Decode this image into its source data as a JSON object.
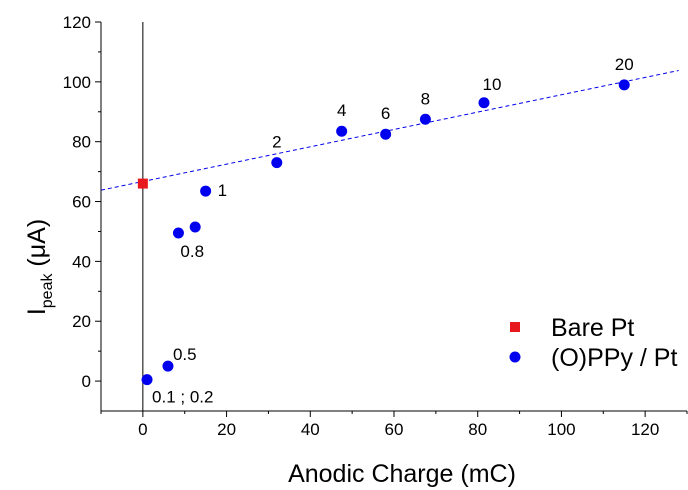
{
  "chart_data": {
    "type": "scatter",
    "xlabel": "Anodic Charge (mC)",
    "ylabel_main": "I",
    "ylabel_sub": "peak",
    "ylabel_unit": " (μA)",
    "xlim": [
      -10,
      130
    ],
    "ylim": [
      -10,
      120
    ],
    "xticks": [
      0,
      20,
      40,
      60,
      80,
      100,
      120
    ],
    "yticks": [
      0,
      20,
      40,
      60,
      80,
      100,
      120
    ],
    "grid": false,
    "legend_position": "bottom-right",
    "series": [
      {
        "name": "Bare Pt",
        "marker": "square",
        "color": "#e8191c",
        "points": [
          {
            "x": 0,
            "y": 66,
            "label": ""
          }
        ]
      },
      {
        "name": "(O)PPy / Pt",
        "marker": "circle",
        "color": "#0000ee",
        "points": [
          {
            "x": 1,
            "y": 0.5,
            "label": "0.1 ; 0.2"
          },
          {
            "x": 6,
            "y": 5,
            "label": "0.5"
          },
          {
            "x": 8.5,
            "y": 49.5,
            "label": "0.8"
          },
          {
            "x": 12.5,
            "y": 51.5,
            "label": ""
          },
          {
            "x": 15,
            "y": 63.5,
            "label": "1"
          },
          {
            "x": 32,
            "y": 73,
            "label": "2"
          },
          {
            "x": 47.5,
            "y": 83.5,
            "label": "4"
          },
          {
            "x": 58,
            "y": 82.5,
            "label": "6"
          },
          {
            "x": 67.5,
            "y": 87.5,
            "label": "8"
          },
          {
            "x": 81.5,
            "y": 93,
            "label": "10"
          },
          {
            "x": 115,
            "y": 99,
            "label": "20"
          }
        ]
      }
    ],
    "fit_line": {
      "color": "#0000ee",
      "style": "dashed",
      "x": [
        -10,
        128
      ],
      "y": [
        63.8,
        103.8
      ]
    },
    "vertical_line": {
      "x": 0,
      "color": "#000000"
    }
  }
}
